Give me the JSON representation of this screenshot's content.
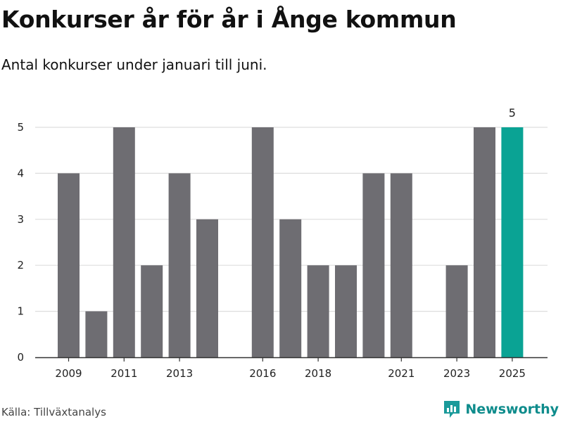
{
  "title": "Konkurser år för år i Ånge kommun",
  "subtitle": "Antal konkurser under januari till juni.",
  "source": "Källa: Tillväxtanalys",
  "brand": "Newsworthy",
  "colors": {
    "bar": "#6e6d72",
    "highlight": "#0aa394",
    "grid": "#dddddd",
    "axis": "#333333",
    "brand": "#0e8c8c"
  },
  "chart_data": {
    "type": "bar",
    "title": "Konkurser år för år i Ånge kommun",
    "subtitle": "Antal konkurser under januari till juni.",
    "categories": [
      "2009",
      "2010",
      "2011",
      "2012",
      "2013",
      "2014",
      "2015",
      "2016",
      "2017",
      "2018",
      "2019",
      "2020",
      "2021",
      "2022",
      "2023",
      "2024",
      "2025"
    ],
    "values": [
      4,
      1,
      5,
      2,
      4,
      3,
      0,
      5,
      3,
      2,
      2,
      4,
      4,
      0,
      2,
      5,
      5
    ],
    "highlight_index": 16,
    "x_tick_labels": [
      "2009",
      "2011",
      "2013",
      "2016",
      "2018",
      "2021",
      "2023",
      "2025"
    ],
    "y_ticks": [
      0,
      1,
      2,
      3,
      4,
      5
    ],
    "ylim": [
      0,
      5
    ],
    "data_labels": [
      {
        "category": "2025",
        "value": "5"
      }
    ],
    "grid": true,
    "xlabel": "",
    "ylabel": ""
  }
}
